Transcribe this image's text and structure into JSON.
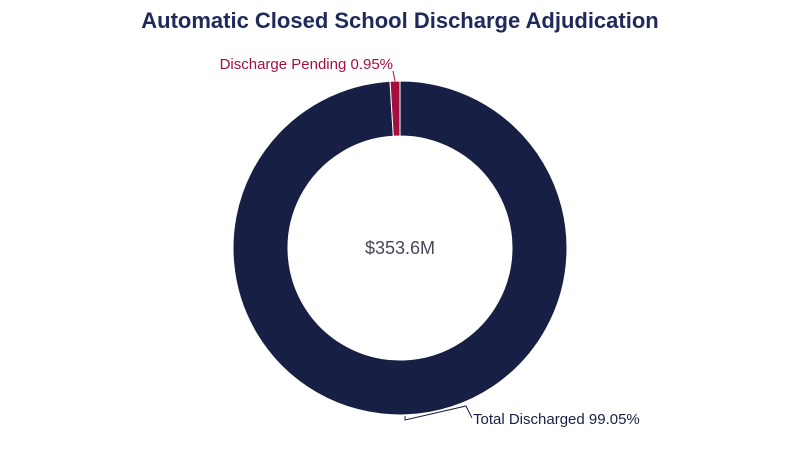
{
  "chart_data": {
    "type": "pie",
    "title": "Automatic Closed School Discharge Adjudication",
    "center_label": "$353.6M",
    "slices": [
      {
        "name": "Total Discharged",
        "value": 99.05,
        "label": "Total Discharged 99.05%",
        "color": "#171f44"
      },
      {
        "name": "Discharge Pending",
        "value": 0.95,
        "label": "Discharge Pending 0.95%",
        "color": "#a50f3f"
      }
    ],
    "legend": "none"
  },
  "colors": {
    "title": "#1f2a5a",
    "center_text": "#44475a",
    "leader_line": "#171f44",
    "slice_border": "#ffffff"
  }
}
